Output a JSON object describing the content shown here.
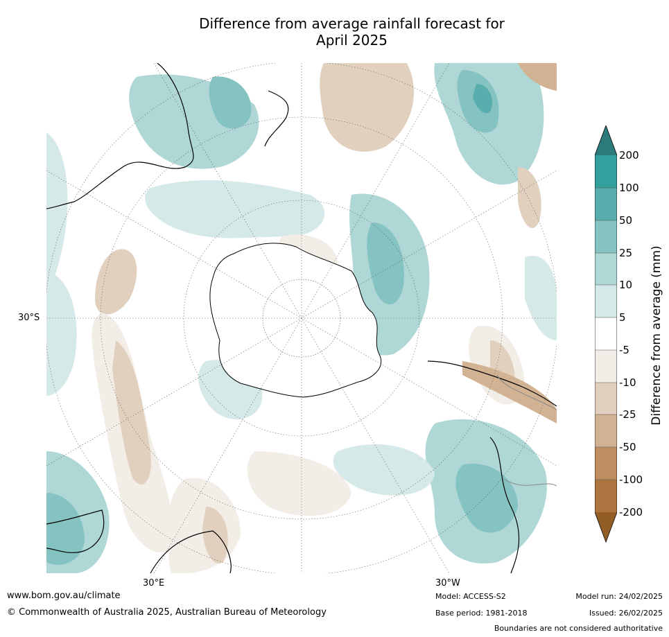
{
  "title": {
    "line1": "Difference from average rainfall forecast for",
    "line2": "April 2025"
  },
  "map": {
    "projection": "south polar stereographic",
    "lat_label": "30°S",
    "lon_labels": [
      "30°E",
      "30°W"
    ]
  },
  "colorbar": {
    "label": "Difference from average (mm)",
    "ticks": [
      "200",
      "100",
      "50",
      "25",
      "10",
      "5",
      "-5",
      "-10",
      "-25",
      "-50",
      "-100",
      "-200"
    ],
    "colors": {
      "gt200": "#2a7b7a",
      "100_200": "#33a09d",
      "50_100": "#5aadad",
      "25_50": "#84c3c1",
      "10_25": "#aed7d5",
      "5_10": "#d5e9e8",
      "neutral": "#ffffff",
      "m5_m10": "#f2ede7",
      "m10_m25": "#e2d0bf",
      "m25_m50": "#d1b292",
      "m50_m100": "#be8e61",
      "m100_m200": "#ad7641",
      "lt_m200": "#935e26"
    }
  },
  "footer": {
    "website": "www.bom.gov.au/climate",
    "copyright": "© Commonwealth of Australia 2025, Australian Bureau of Meteorology",
    "model": "Model: ACCESS-S2",
    "base_period": "Base period: 1981-2018",
    "model_run": "Model run: 24/02/2025",
    "issued": "Issued: 26/02/2025",
    "disclaimer": "Boundaries are not considered authoritative"
  }
}
